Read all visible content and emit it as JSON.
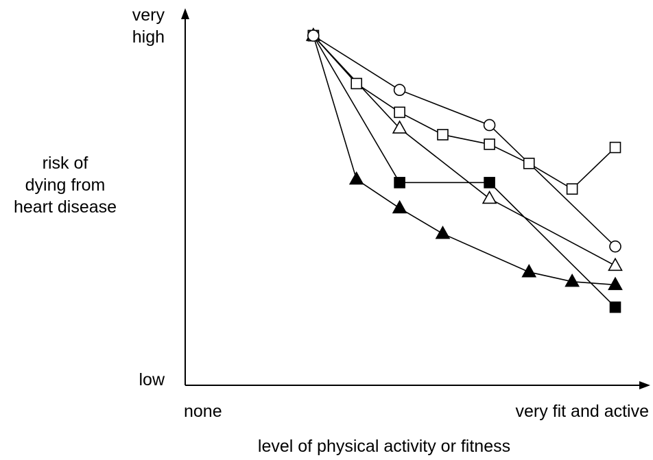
{
  "chart_data": {
    "type": "line",
    "title": "",
    "xlabel": "level of physical activity or fitness",
    "ylabel_lines": [
      "risk of",
      "dying from",
      "heart disease"
    ],
    "x_tick_labels": {
      "min": "none",
      "max": "very fit and active"
    },
    "y_tick_labels": {
      "top_lines": [
        "very",
        "high"
      ],
      "bottom": "low"
    },
    "xlim": [
      0,
      10
    ],
    "ylim": [
      0,
      10
    ],
    "grid": false,
    "legend": "none",
    "series": [
      {
        "marker": "filled-triangle",
        "x": [
          1.6,
          2.8,
          4.0,
          5.2,
          7.6,
          8.8,
          10.0
        ],
        "y": [
          10.0,
          5.5,
          4.6,
          3.8,
          2.6,
          2.3,
          2.2
        ]
      },
      {
        "marker": "filled-square",
        "x": [
          1.6,
          4.0,
          6.5,
          10.0
        ],
        "y": [
          10.0,
          5.4,
          5.4,
          1.5
        ]
      },
      {
        "marker": "open-triangle",
        "x": [
          1.6,
          4.0,
          6.5,
          10.0
        ],
        "y": [
          10.0,
          7.1,
          4.9,
          2.8
        ]
      },
      {
        "marker": "open-square",
        "x": [
          1.6,
          2.8,
          4.0,
          5.2,
          6.5,
          7.6,
          8.8,
          10.0
        ],
        "y": [
          10.0,
          8.5,
          7.6,
          6.9,
          6.6,
          6.0,
          5.2,
          6.5
        ]
      },
      {
        "marker": "open-circle",
        "x": [
          1.6,
          4.0,
          6.5,
          10.0
        ],
        "y": [
          10.0,
          8.3,
          7.2,
          3.4
        ]
      }
    ]
  }
}
